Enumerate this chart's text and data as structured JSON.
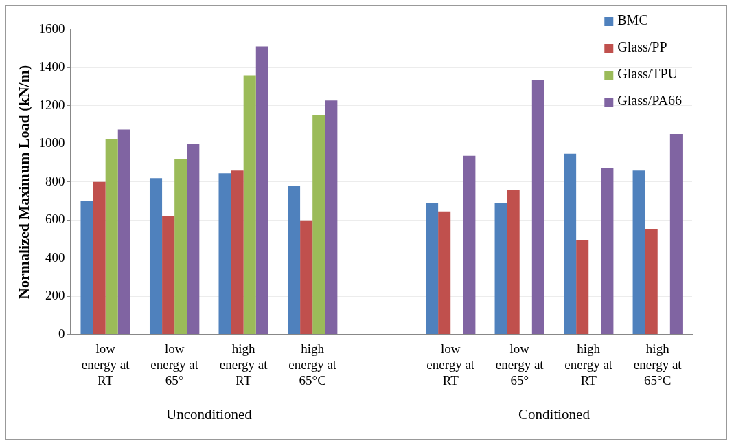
{
  "chart_data": {
    "type": "bar",
    "ylabel": "Normalized Maximum Load (kN/m)",
    "categories": [
      "low energy at RT",
      "low energy at 65°",
      "high energy at RT",
      "high energy at 65°C",
      null,
      "low energy at RT",
      "low energy at 65°",
      "high energy at RT",
      "high energy at 65°C"
    ],
    "series": [
      {
        "name": "BMC",
        "color": "#4f81bd",
        "values": [
          700,
          820,
          845,
          780,
          null,
          690,
          688,
          948,
          860
        ]
      },
      {
        "name": "Glass/PP",
        "color": "#c0504d",
        "values": [
          800,
          620,
          860,
          598,
          null,
          645,
          760,
          493,
          550
        ]
      },
      {
        "name": "Glass/TPU",
        "color": "#9bbb59",
        "values": [
          1025,
          918,
          1360,
          1152,
          null,
          null,
          null,
          null,
          null
        ]
      },
      {
        "name": "Glass/PA66",
        "color": "#8064a2",
        "values": [
          1075,
          998,
          1512,
          1228,
          null,
          937,
          1335,
          875,
          1052
        ]
      }
    ],
    "ylim": [
      0,
      1600
    ],
    "yticks": [
      0,
      200,
      400,
      600,
      800,
      1000,
      1200,
      1400,
      1600
    ],
    "grid": "y",
    "legend": "top right",
    "annotations": [
      "Unconditioned",
      "Conditioned"
    ]
  }
}
